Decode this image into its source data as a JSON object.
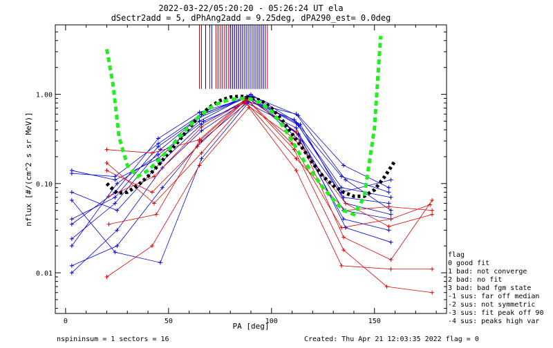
{
  "chart_data": {
    "type": "line",
    "title": "2022-03-22/05:20:20 - 05:26:24 UT ela",
    "subtitle": "dSectr2add = 5, dPhAng2add = 9.25deg, dPA290_est=    0.0deg",
    "xlabel": "PA [deg]",
    "ylabel": "nflux [#/(cm^2 s sr MeV)]",
    "x_ticks": [
      "0",
      "50",
      "100",
      "150"
    ],
    "y_ticks": [
      "0.01",
      "0.10",
      "1.00"
    ],
    "xlim": [
      -5,
      185
    ],
    "ylim": [
      0.0035,
      6.0
    ],
    "y_scale": "log",
    "grid": false,
    "series": [
      {
        "color": "#0000dd",
        "lines": [
          {
            "x": [
              3,
              24,
              45,
              65,
              88,
              112,
              134,
              158
            ],
            "y": [
              0.14,
              0.11,
              0.19,
              0.5,
              0.95,
              0.48,
              0.09,
              0.07
            ]
          },
          {
            "x": [
              3,
              25,
              46,
              66,
              89,
              113,
              135,
              157
            ],
            "y": [
              0.08,
              0.05,
              0.17,
              0.46,
              0.9,
              0.36,
              0.07,
              0.06
            ]
          },
          {
            "x": [
              3,
              24,
              46,
              67,
              90,
              114,
              136,
              158
            ],
            "y": [
              0.024,
              0.06,
              0.24,
              0.6,
              1.0,
              0.46,
              0.06,
              0.045
            ]
          },
          {
            "x": [
              3,
              25,
              47,
              66,
              88,
              111,
              134,
              157
            ],
            "y": [
              0.01,
              0.03,
              0.15,
              0.39,
              0.85,
              0.52,
              0.12,
              0.08
            ]
          },
          {
            "x": [
              3,
              24,
              45,
              65,
              90,
              113,
              135,
              158
            ],
            "y": [
              0.035,
              0.08,
              0.32,
              0.63,
              0.93,
              0.35,
              0.05,
              0.04
            ]
          },
          {
            "x": [
              3,
              24,
              46,
              66,
              89,
              112,
              136,
              158
            ],
            "y": [
              0.065,
              0.017,
              0.013,
              0.19,
              0.82,
              0.6,
              0.11,
              0.05
            ]
          },
          {
            "x": [
              3,
              25,
              45,
              67,
              91,
              114,
              135,
              157
            ],
            "y": [
              0.02,
              0.1,
              0.21,
              0.5,
              0.88,
              0.3,
              0.04,
              0.03
            ]
          },
          {
            "x": [
              3,
              25,
              47,
              66,
              88,
              112,
              136,
              158
            ],
            "y": [
              0.012,
              0.02,
              0.09,
              0.3,
              0.8,
              0.42,
              0.032,
              0.022
            ]
          },
          {
            "x": [
              3,
              24,
              45,
              65,
              90,
              113,
              135,
              157
            ],
            "y": [
              0.04,
              0.07,
              0.26,
              0.55,
              0.96,
              0.58,
              0.16,
              0.09
            ]
          },
          {
            "x": [
              3,
              24,
              45,
              66,
              89,
              113,
              134,
              158
            ],
            "y": [
              0.13,
              0.12,
              0.28,
              0.6,
              0.93,
              0.45,
              0.08,
              0.11
            ]
          }
        ]
      },
      {
        "color": "#dd0000",
        "lines": [
          {
            "x": [
              20,
              42,
              65,
              88,
              112,
              135,
              158,
              178
            ],
            "y": [
              0.24,
              0.22,
              0.31,
              0.92,
              0.38,
              0.025,
              0.014,
              0.065
            ]
          },
          {
            "x": [
              20,
              43,
              66,
              87,
              111,
              136,
              157,
              178
            ],
            "y": [
              0.17,
              0.06,
              0.22,
              0.79,
              0.32,
              0.06,
              0.033,
              0.045
            ]
          },
          {
            "x": [
              20,
              42,
              65,
              89,
              112,
              134,
              158,
              178
            ],
            "y": [
              0.009,
              0.02,
              0.16,
              0.71,
              0.14,
              0.012,
              0.011,
              0.011
            ]
          },
          {
            "x": [
              21,
              43,
              66,
              88,
              111,
              135,
              156,
              178
            ],
            "y": [
              0.072,
              0.12,
              0.43,
              0.88,
              0.24,
              0.018,
              0.007,
              0.006
            ]
          },
          {
            "x": [
              20,
              42,
              64,
              87,
              112,
              136,
              157,
              178
            ],
            "y": [
              0.14,
              0.08,
              0.26,
              0.84,
              0.19,
              0.05,
              0.055,
              0.05
            ]
          },
          {
            "x": [
              21,
              44,
              65,
              88,
              110,
              134,
              158,
              177
            ],
            "y": [
              0.035,
              0.045,
              0.3,
              0.89,
              0.28,
              0.032,
              0.04,
              0.058
            ]
          }
        ]
      },
      {
        "color": "#000000",
        "dashed": true,
        "x": [
          20,
          25,
          30,
          35,
          40,
          45,
          50,
          55,
          60,
          65,
          70,
          75,
          80,
          85,
          90,
          95,
          100,
          105,
          110,
          115,
          120,
          125,
          130,
          135,
          140,
          145,
          150,
          155,
          160
        ],
        "y": [
          0.1,
          0.078,
          0.08,
          0.095,
          0.12,
          0.16,
          0.22,
          0.3,
          0.42,
          0.57,
          0.72,
          0.85,
          0.93,
          0.95,
          0.92,
          0.85,
          0.7,
          0.52,
          0.36,
          0.25,
          0.17,
          0.12,
          0.095,
          0.08,
          0.072,
          0.072,
          0.085,
          0.12,
          0.18
        ]
      },
      {
        "color": "#22ee22",
        "dashed": true,
        "x": [
          20,
          23,
          26,
          30,
          35,
          40,
          45,
          50,
          55,
          60,
          65,
          70,
          75,
          80,
          85,
          90,
          95,
          100,
          105,
          110,
          115,
          120,
          125,
          130,
          135,
          140,
          145,
          150,
          153
        ],
        "y": [
          3.2,
          1.3,
          0.33,
          0.16,
          0.12,
          0.14,
          0.18,
          0.24,
          0.33,
          0.44,
          0.57,
          0.7,
          0.81,
          0.87,
          0.9,
          0.88,
          0.8,
          0.64,
          0.46,
          0.3,
          0.19,
          0.13,
          0.09,
          0.066,
          0.05,
          0.045,
          0.07,
          0.42,
          4.5
        ]
      }
    ],
    "vertical_markers": {
      "red_x": [
        65,
        66,
        68,
        70,
        73,
        75,
        77,
        79,
        80,
        81,
        82,
        83,
        84,
        85,
        86,
        87,
        88,
        89,
        90,
        91,
        92,
        93,
        94,
        95,
        96,
        98
      ],
      "blue_x": [
        68,
        71,
        74,
        76,
        78,
        80,
        81,
        82,
        83,
        84,
        85,
        86,
        87,
        88,
        89,
        90,
        91,
        92,
        93,
        94,
        95,
        96,
        97
      ],
      "y_top": 6.0,
      "y_bottom": 1.15
    }
  },
  "legend": {
    "title": "flag",
    "items": [
      " 0 good fit",
      " 1 bad: not converge",
      " 2 bad: no fit",
      " 3 bad: bad fgm state",
      "-1 sus: far off median",
      "-2 sus: not symmetric",
      "-3 sus: fit peak off 90",
      "-4 sus: peaks high var"
    ]
  },
  "footer": {
    "left": "nspininsum =  1  sectors = 16",
    "right": "Created: Thu Apr 21 12:03:35 2022   flag = 0"
  }
}
